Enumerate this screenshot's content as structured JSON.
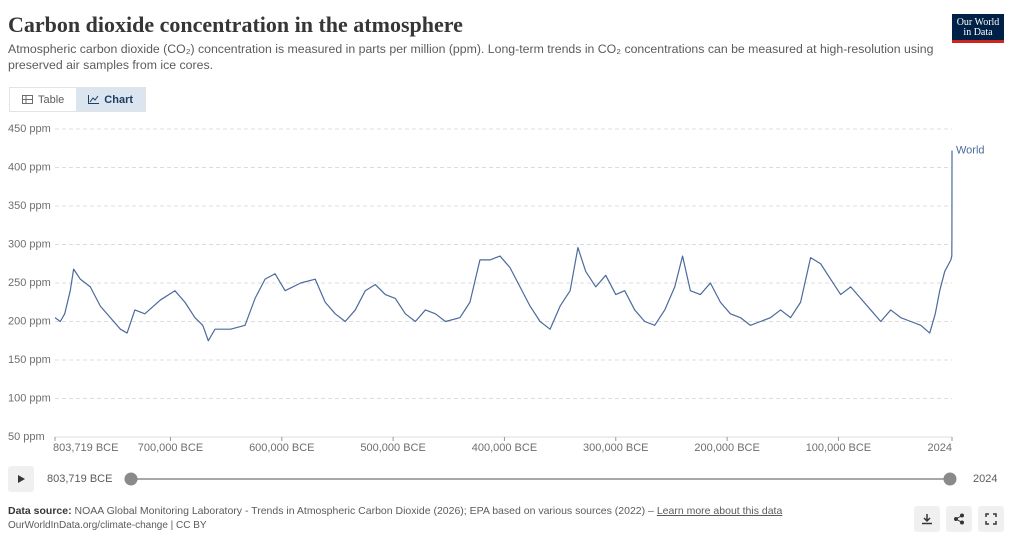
{
  "header": {
    "title": "Carbon dioxide concentration in the atmosphere",
    "subtitle": "Atmospheric carbon dioxide (CO₂) concentration is measured in parts per million (ppm). Long-term trends in CO₂ concentrations can be measured at high-resolution using preserved air samples from ice cores.",
    "logo": [
      "Our World",
      "in Data"
    ]
  },
  "tabs": [
    "Table",
    "Chart"
  ],
  "chart_data": {
    "type": "line",
    "xlim": [
      -803719,
      2024
    ],
    "xticks": [
      {
        "value": -803719,
        "label": "803,719 BCE"
      },
      {
        "value": -700000,
        "label": "700,000 BCE"
      },
      {
        "value": -600000,
        "label": "600,000 BCE"
      },
      {
        "value": -500000,
        "label": "500,000 BCE"
      },
      {
        "value": -400000,
        "label": "400,000 BCE"
      },
      {
        "value": -300000,
        "label": "300,000 BCE"
      },
      {
        "value": -200000,
        "label": "200,000 BCE"
      },
      {
        "value": -100000,
        "label": "100,000 BCE"
      },
      2024
    ],
    "ylim": [
      50,
      450
    ],
    "yticks": [
      {
        "value": 50,
        "label": "50 ppm"
      },
      {
        "value": 100,
        "label": "100 ppm"
      },
      {
        "value": 150,
        "label": "150 ppm"
      },
      {
        "value": 200,
        "label": "200 ppm"
      },
      {
        "value": 250,
        "label": "250 ppm"
      },
      {
        "value": 300,
        "label": "300 ppm"
      },
      {
        "value": 350,
        "label": "350 ppm"
      },
      {
        "value": 400,
        "label": "400 ppm"
      },
      {
        "value": 450,
        "label": "450 ppm"
      }
    ],
    "grid": true,
    "series": [
      {
        "name": "World",
        "color": "#4c6a9c",
        "x": [
          -803719,
          -799000,
          -795000,
          -790000,
          -787000,
          -781000,
          -772000,
          -763000,
          -754000,
          -745000,
          -739000,
          -732000,
          -723000,
          -709000,
          -696000,
          -687000,
          -678000,
          -671000,
          -666000,
          -660000,
          -646000,
          -633000,
          -624000,
          -615000,
          -606000,
          -597000,
          -583000,
          -570000,
          -561000,
          -552000,
          -543000,
          -534000,
          -525000,
          -516000,
          -507000,
          -498000,
          -489000,
          -480000,
          -471000,
          -462000,
          -453000,
          -440000,
          -431000,
          -422000,
          -413000,
          -404000,
          -395000,
          -386000,
          -377000,
          -368000,
          -359000,
          -350000,
          -341000,
          -334000,
          -327000,
          -318000,
          -309000,
          -300000,
          -292000,
          -283000,
          -274000,
          -265000,
          -256000,
          -247000,
          -240000,
          -233000,
          -224000,
          -215000,
          -206000,
          -197000,
          -188000,
          -179000,
          -170000,
          -161000,
          -152000,
          -143000,
          -134000,
          -125000,
          -116000,
          -107000,
          -98000,
          -89000,
          -80000,
          -71000,
          -62000,
          -53000,
          -44000,
          -35000,
          -26000,
          -18000,
          -13000,
          -9000,
          -4500,
          1000,
          1850,
          1950,
          2000,
          2024
        ],
        "values": [
          205,
          200,
          210,
          240,
          268,
          255,
          245,
          220,
          205,
          190,
          185,
          215,
          210,
          228,
          240,
          225,
          205,
          195,
          175,
          190,
          190,
          195,
          230,
          255,
          262,
          240,
          250,
          255,
          225,
          210,
          200,
          215,
          240,
          248,
          235,
          230,
          210,
          200,
          215,
          210,
          200,
          205,
          225,
          280,
          280,
          285,
          270,
          245,
          220,
          200,
          190,
          220,
          240,
          296,
          265,
          245,
          260,
          235,
          240,
          215,
          200,
          195,
          215,
          245,
          285,
          240,
          235,
          250,
          225,
          210,
          205,
          195,
          200,
          205,
          215,
          205,
          225,
          283,
          275,
          255,
          235,
          245,
          230,
          215,
          200,
          215,
          205,
          200,
          195,
          185,
          210,
          240,
          265,
          280,
          285,
          311,
          369,
          422
        ]
      }
    ]
  },
  "timeline": {
    "start": "803,719 BCE",
    "end": "2024"
  },
  "footer": {
    "source_label": "Data source:",
    "source": "NOAA Global Monitoring Laboratory - Trends in Atmospheric Carbon Dioxide (2026); EPA based on various sources (2022) –",
    "link": "Learn more about this data",
    "url_line": "OurWorldInData.org/climate-change | CC BY"
  }
}
